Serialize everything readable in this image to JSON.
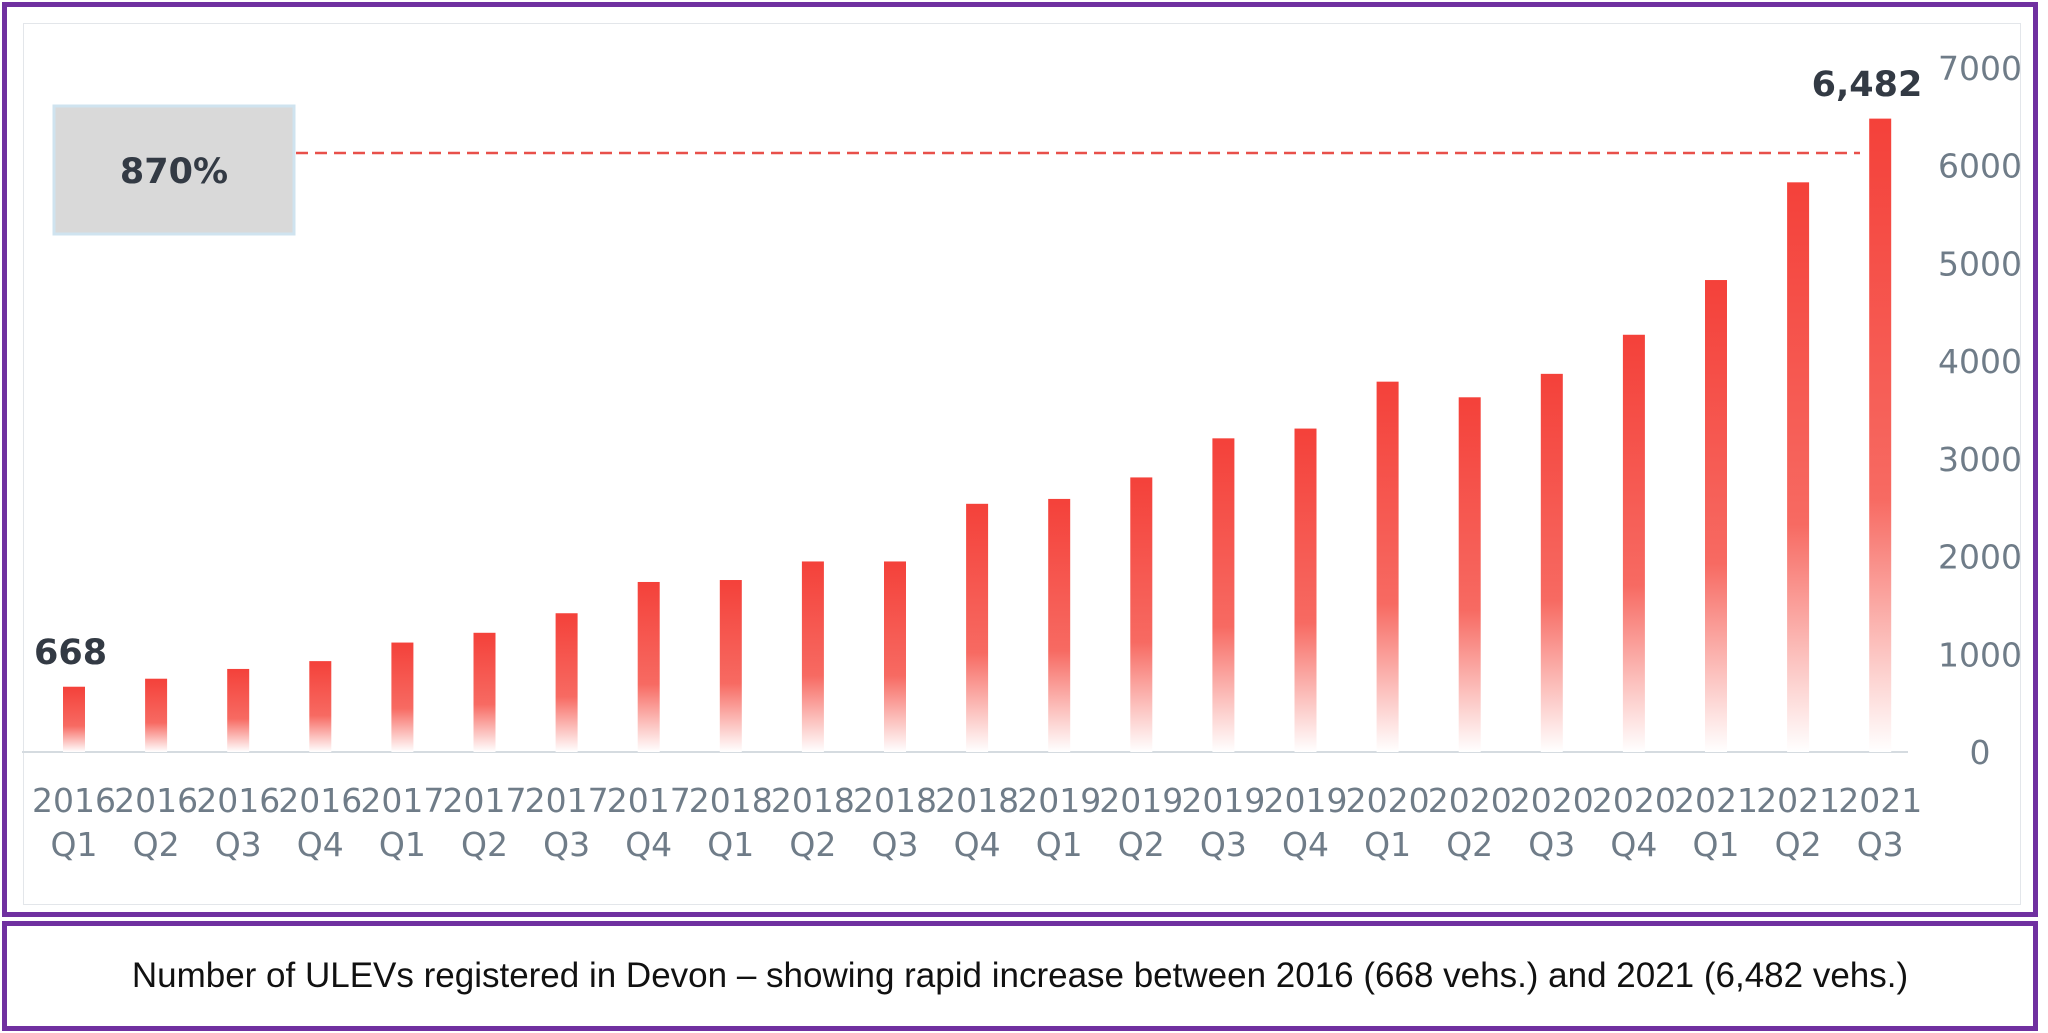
{
  "caption": "Number of ULEVs registered in Devon – showing rapid increase between 2016 (668 vehs.) and 2021 (6,482 vehs.)",
  "annotation": {
    "percent_label": "870%",
    "first_label": "668",
    "last_label": "6,482"
  },
  "colors": {
    "frame": "#7030a0",
    "bar": "#f4413a",
    "reference_line": "#e8504a",
    "annotation_box": "#d9d9d9"
  },
  "chart_data": {
    "type": "bar",
    "categories": [
      [
        "2016",
        "Q1"
      ],
      [
        "2016",
        "Q2"
      ],
      [
        "2016",
        "Q3"
      ],
      [
        "2016",
        "Q4"
      ],
      [
        "2017",
        "Q1"
      ],
      [
        "2017",
        "Q2"
      ],
      [
        "2017",
        "Q3"
      ],
      [
        "2017",
        "Q4"
      ],
      [
        "2018",
        "Q1"
      ],
      [
        "2018",
        "Q2"
      ],
      [
        "2018",
        "Q3"
      ],
      [
        "2018",
        "Q4"
      ],
      [
        "2019",
        "Q1"
      ],
      [
        "2019",
        "Q2"
      ],
      [
        "2019",
        "Q3"
      ],
      [
        "2019",
        "Q4"
      ],
      [
        "2020",
        "Q1"
      ],
      [
        "2020",
        "Q2"
      ],
      [
        "2020",
        "Q3"
      ],
      [
        "2020",
        "Q4"
      ],
      [
        "2021",
        "Q1"
      ],
      [
        "2021",
        "Q2"
      ],
      [
        "2021",
        "Q3"
      ]
    ],
    "values": [
      668,
      750,
      850,
      930,
      1120,
      1220,
      1420,
      1740,
      1760,
      1950,
      1950,
      2540,
      2590,
      2810,
      3210,
      3310,
      3790,
      3630,
      3870,
      4270,
      4830,
      5830,
      6482
    ],
    "ylim": [
      0,
      7000
    ],
    "yticks": [
      0,
      1000,
      2000,
      3000,
      4000,
      5000,
      6000,
      7000
    ],
    "y_axis_position": "right",
    "grid": false,
    "legend": "none",
    "reference_line_value": 6130
  }
}
